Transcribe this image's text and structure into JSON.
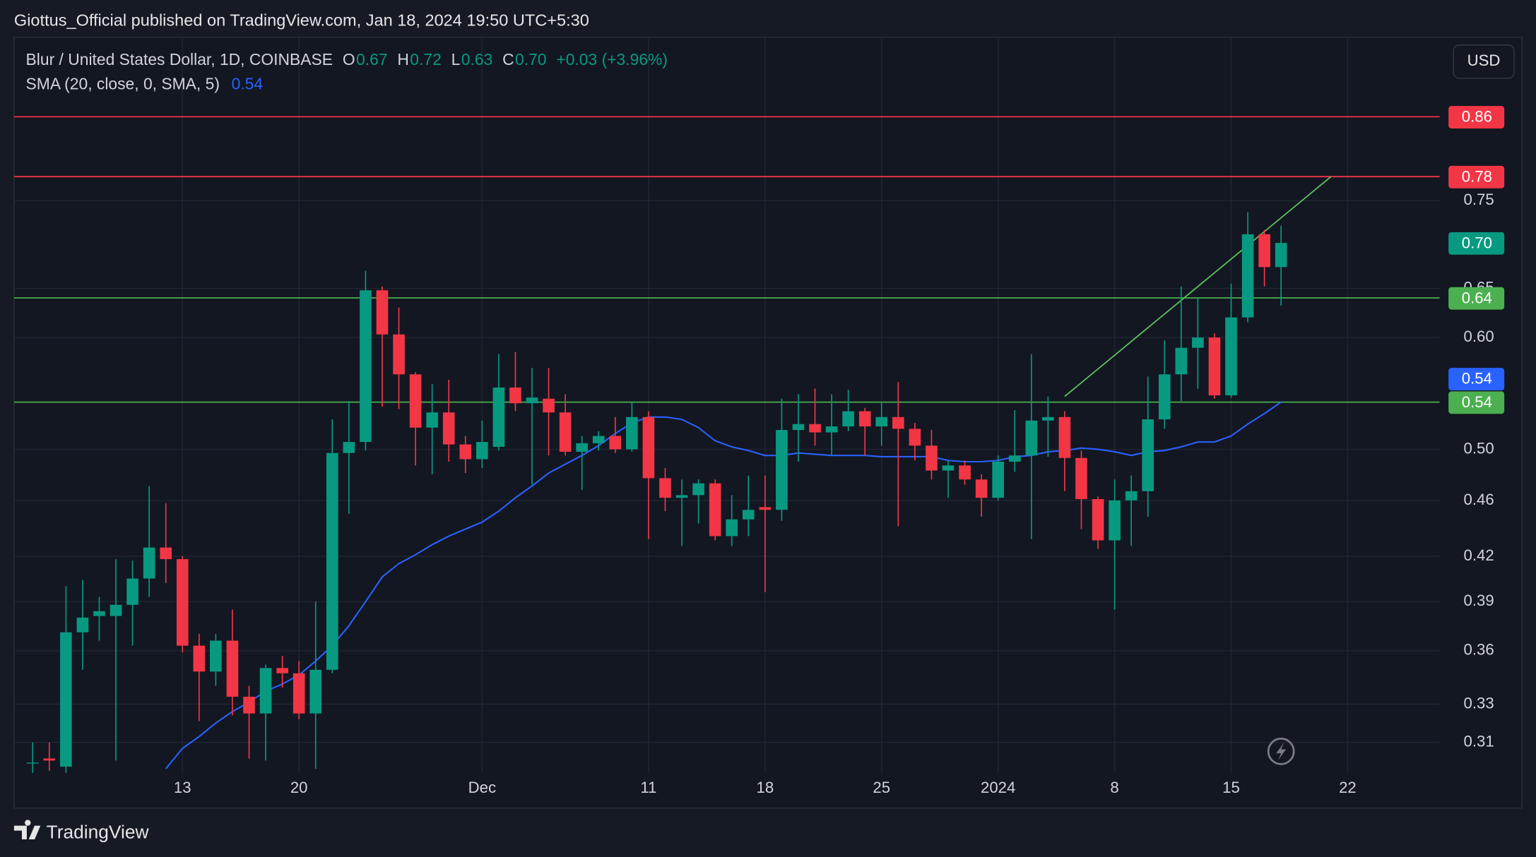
{
  "header": {
    "published": "Giottus_Official published on TradingView.com, Jan 18, 2024 19:50 UTC+5:30"
  },
  "chart_data": {
    "type": "candlestick",
    "legend": {
      "symbol": "Blur / United States Dollar, 1D, COINBASE",
      "fields": [
        {
          "key": "O",
          "value": "0.67"
        },
        {
          "key": "H",
          "value": "0.72"
        },
        {
          "key": "L",
          "value": "0.63"
        },
        {
          "key": "C",
          "value": "0.70"
        }
      ],
      "change": "+0.03 (+3.96%)"
    },
    "currency": "USD",
    "log_y": true,
    "grid": true,
    "up_color": "#089981",
    "down_color": "#f23645",
    "ylim": [
      0.295,
      0.976
    ],
    "yticks": [
      0.31,
      0.33,
      0.36,
      0.39,
      0.42,
      0.46,
      {
        "value": 0.5,
        "label": "0.50"
      },
      {
        "value": 0.6,
        "label": "0.60"
      },
      0.65,
      0.75
    ],
    "categories": [
      null,
      null,
      null,
      null,
      null,
      null,
      null,
      null,
      null,
      null,
      "13",
      null,
      null,
      null,
      null,
      null,
      null,
      "20",
      null,
      null,
      null,
      null,
      null,
      null,
      null,
      null,
      null,
      null,
      "Dec",
      null,
      null,
      null,
      null,
      null,
      null,
      null,
      null,
      null,
      "11",
      null,
      null,
      null,
      null,
      null,
      null,
      "18",
      null,
      null,
      null,
      null,
      null,
      null,
      "25",
      null,
      null,
      null,
      null,
      null,
      null,
      "2024",
      null,
      null,
      null,
      null,
      null,
      null,
      "8",
      null,
      null,
      null,
      null,
      null,
      null,
      "15",
      null,
      null,
      null,
      null,
      null,
      null,
      "22",
      null,
      null,
      null,
      null,
      null,
      null
    ],
    "open": [
      null,
      0.3,
      0.302,
      0.298,
      0.371,
      0.381,
      0.381,
      0.388,
      0.405,
      0.426,
      0.418,
      0.363,
      0.348,
      0.366,
      0.334,
      0.325,
      0.35,
      0.347,
      0.325,
      0.349,
      0.497,
      0.506,
      0.648,
      0.603,
      0.565,
      0.518,
      0.531,
      0.504,
      0.492,
      0.502,
      0.553,
      0.539,
      0.543,
      0.531,
      0.498,
      0.505,
      0.511,
      0.5,
      0.527,
      0.477,
      0.462,
      0.464,
      0.473,
      0.434,
      0.446,
      0.455,
      0.453,
      0.516,
      0.521,
      0.514,
      0.519,
      0.532,
      0.519,
      0.527,
      0.517,
      0.503,
      0.483,
      0.487,
      0.476,
      0.462,
      0.49,
      0.495,
      0.524,
      0.527,
      0.493,
      0.461,
      0.431,
      0.46,
      0.467,
      0.525,
      0.565,
      0.59,
      0.6,
      0.546,
      0.62,
      0.71,
      0.673,
      null,
      null,
      null,
      null,
      null,
      null,
      null,
      null,
      null,
      null
    ],
    "high": [
      null,
      0.31,
      0.31,
      0.4,
      0.404,
      0.393,
      0.418,
      0.417,
      0.471,
      0.458,
      0.42,
      0.37,
      0.37,
      0.385,
      0.34,
      0.352,
      0.357,
      0.354,
      0.39,
      0.525,
      0.541,
      0.669,
      0.652,
      0.63,
      0.567,
      0.556,
      0.56,
      0.511,
      0.524,
      0.584,
      0.586,
      0.571,
      0.571,
      0.547,
      0.511,
      0.515,
      0.527,
      0.54,
      0.532,
      0.485,
      0.476,
      0.476,
      0.476,
      0.464,
      0.479,
      0.479,
      0.543,
      0.547,
      0.552,
      0.547,
      0.551,
      0.535,
      0.54,
      0.558,
      0.522,
      0.516,
      0.491,
      0.491,
      0.48,
      0.495,
      0.533,
      0.584,
      0.545,
      0.532,
      0.499,
      0.463,
      0.476,
      0.479,
      0.563,
      0.597,
      0.652,
      0.64,
      0.604,
      0.655,
      0.736,
      0.715,
      0.72,
      null,
      null,
      null,
      null,
      null,
      null,
      null,
      null,
      null,
      null
    ],
    "low": [
      null,
      0.295,
      0.296,
      0.295,
      0.349,
      0.366,
      0.301,
      0.363,
      0.393,
      0.402,
      0.359,
      0.321,
      0.34,
      0.324,
      0.302,
      0.301,
      0.339,
      0.322,
      0.297,
      0.347,
      0.45,
      0.499,
      0.536,
      0.534,
      0.487,
      0.48,
      0.49,
      0.481,
      0.485,
      0.499,
      0.532,
      0.472,
      0.495,
      0.495,
      0.468,
      0.499,
      0.497,
      0.498,
      0.432,
      0.452,
      0.427,
      0.443,
      0.431,
      0.427,
      0.434,
      0.396,
      0.445,
      0.49,
      0.503,
      0.495,
      0.515,
      0.495,
      0.503,
      0.441,
      0.491,
      0.476,
      0.462,
      0.472,
      0.448,
      0.46,
      0.482,
      0.432,
      0.494,
      0.467,
      0.439,
      0.425,
      0.385,
      0.427,
      0.448,
      0.517,
      0.541,
      0.552,
      0.543,
      0.544,
      0.615,
      0.652,
      0.632,
      null,
      null,
      null,
      null,
      null,
      null,
      null,
      null,
      null,
      null
    ],
    "close": [
      null,
      0.3,
      0.301,
      0.371,
      0.38,
      0.384,
      0.388,
      0.405,
      0.426,
      0.418,
      0.363,
      0.348,
      0.366,
      0.334,
      0.325,
      0.35,
      0.347,
      0.325,
      0.349,
      0.497,
      0.506,
      0.648,
      0.603,
      0.565,
      0.518,
      0.531,
      0.504,
      0.492,
      0.506,
      0.553,
      0.539,
      0.544,
      0.531,
      0.498,
      0.505,
      0.511,
      0.5,
      0.527,
      0.477,
      0.462,
      0.464,
      0.473,
      0.434,
      0.446,
      0.453,
      0.453,
      0.516,
      0.521,
      0.514,
      0.519,
      0.532,
      0.519,
      0.527,
      0.517,
      0.503,
      0.483,
      0.487,
      0.476,
      0.462,
      0.49,
      0.495,
      0.524,
      0.527,
      0.493,
      0.461,
      0.431,
      0.46,
      0.467,
      0.525,
      0.565,
      0.59,
      0.6,
      0.546,
      0.62,
      0.71,
      0.673,
      0.7,
      null,
      null,
      null,
      null,
      null,
      null,
      null,
      null,
      null,
      null
    ],
    "last_price_label": "0.70",
    "sma": {
      "name": "SMA (20, close, 0, SMA, 5)",
      "color": "#2962ff",
      "value_label": "0.54",
      "values": [
        null,
        null,
        null,
        null,
        null,
        null,
        null,
        null,
        null,
        0.297,
        0.307,
        0.313,
        0.32,
        0.326,
        0.331,
        0.337,
        0.341,
        0.346,
        0.354,
        0.363,
        0.375,
        0.39,
        0.406,
        0.415,
        0.421,
        0.428,
        0.434,
        0.439,
        0.444,
        0.452,
        0.462,
        0.471,
        0.481,
        0.488,
        0.495,
        0.503,
        0.513,
        0.522,
        0.527,
        0.527,
        0.525,
        0.518,
        0.507,
        0.502,
        0.499,
        0.495,
        0.495,
        0.497,
        0.496,
        0.495,
        0.495,
        0.495,
        0.494,
        0.494,
        0.494,
        0.494,
        0.491,
        0.49,
        0.49,
        0.491,
        0.494,
        0.495,
        0.498,
        0.499,
        0.501,
        0.5,
        0.498,
        0.495,
        0.498,
        0.499,
        0.502,
        0.506,
        0.506,
        0.511,
        0.521,
        0.53,
        0.54,
        null,
        null,
        null,
        null,
        null,
        null,
        null,
        null,
        null,
        null
      ]
    },
    "hlines": [
      {
        "value": 0.86,
        "label": "0.86",
        "color": "#f23645"
      },
      {
        "value": 0.78,
        "label": "0.78",
        "color": "#f23645"
      },
      {
        "value": 0.64,
        "label": "0.64",
        "color": "#4caf50"
      },
      {
        "value": 0.54,
        "label": "0.54",
        "color": "#4caf50"
      }
    ],
    "trendline": {
      "x": [
        63,
        79
      ],
      "values": [
        0.545,
        0.78
      ],
      "color": "#5cc15f"
    }
  },
  "footer": {
    "brand": "TradingView"
  }
}
